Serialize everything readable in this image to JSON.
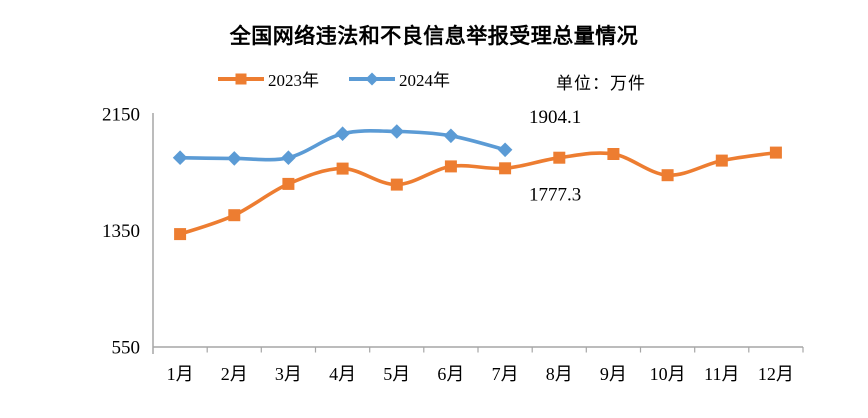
{
  "chart_data": {
    "type": "line",
    "title": "全国网络违法和不良信息举报受理总量情况",
    "unit_label": "单位：万件",
    "categories": [
      "1月",
      "2月",
      "3月",
      "4月",
      "5月",
      "6月",
      "7月",
      "8月",
      "9月",
      "10月",
      "11月",
      "12月"
    ],
    "ylim": [
      550,
      2150
    ],
    "y_ticks": [
      550,
      1350,
      2150
    ],
    "grid": false,
    "legend_position": "top",
    "axis_color": "#A6A6A6",
    "text_color": "#000000",
    "series": [
      {
        "name": "2023年",
        "color": "#ED7D31",
        "marker": "square",
        "values": [
          1325,
          1455,
          1670,
          1775,
          1665,
          1790,
          1777.3,
          1850,
          1875,
          1730,
          1830,
          1885
        ],
        "point_labels": {
          "6": "1777.3"
        },
        "label_position": "below"
      },
      {
        "name": "2024年",
        "color": "#5B9BD5",
        "marker": "diamond",
        "values": [
          1850,
          1845,
          1850,
          2015,
          2030,
          2000,
          1904.1
        ],
        "point_labels": {
          "6": "1904.1"
        },
        "label_position": "above"
      }
    ]
  }
}
